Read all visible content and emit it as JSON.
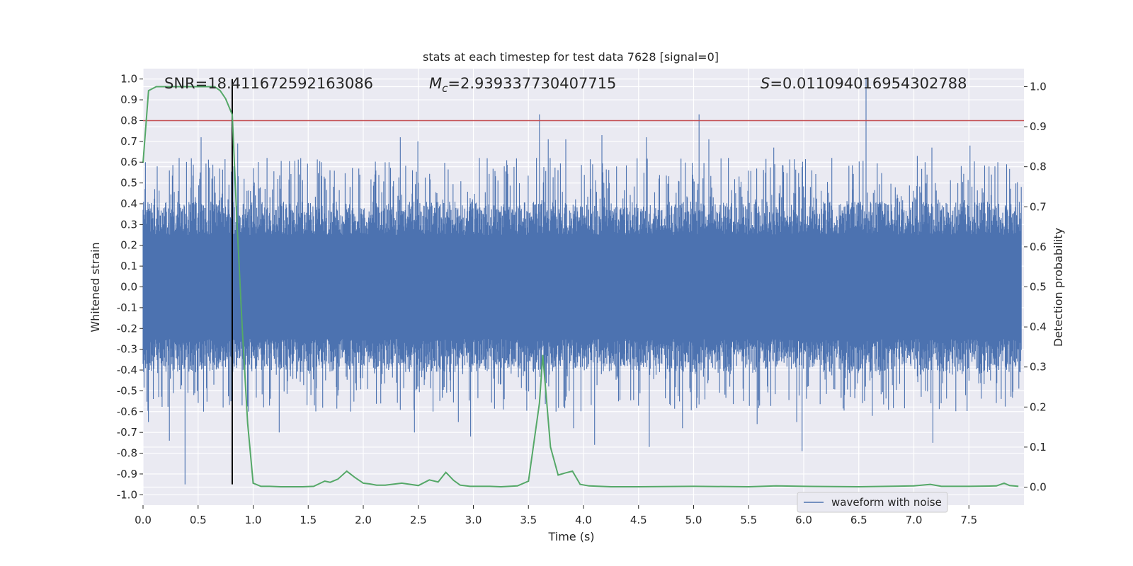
{
  "chart_data": {
    "type": "line",
    "title": "stats at each timestep for test data 7628 [signal=0]",
    "xlabel": "Time (s)",
    "ylabel_left": "Whitened strain",
    "ylabel_right": "Detection probability",
    "xlim": [
      0,
      8.0
    ],
    "ylim_left": [
      -1.05,
      1.05
    ],
    "ylim_right": [
      -0.045,
      1.045
    ],
    "x_ticks": [
      "0.0",
      "0.5",
      "1.0",
      "1.5",
      "2.0",
      "2.5",
      "3.0",
      "3.5",
      "4.0",
      "4.5",
      "5.0",
      "5.5",
      "6.0",
      "6.5",
      "7.0",
      "7.5"
    ],
    "y_ticks_left": [
      "1.0",
      "0.9",
      "0.8",
      "0.7",
      "0.6",
      "0.5",
      "0.4",
      "0.3",
      "0.2",
      "0.1",
      "0.0",
      "-0.1",
      "-0.2",
      "-0.3",
      "-0.4",
      "-0.5",
      "-0.6",
      "-0.7",
      "-0.8",
      "-0.9",
      "-1.0"
    ],
    "y_ticks_right": [
      "1.0",
      "0.9",
      "0.8",
      "0.7",
      "0.6",
      "0.5",
      "0.4",
      "0.3",
      "0.2",
      "0.1",
      "0.0"
    ],
    "grid": true,
    "legend_position": "lower-right",
    "annotations": {
      "snr": "SNR=18.411672592163086",
      "mc_symbol": "M",
      "mc_sub": "c",
      "mc_value": "=2.939337730407715",
      "s_symbol": "S",
      "s_value": "=0.011094016954302788"
    },
    "series": [
      {
        "name": "waveform with noise",
        "axis": "left",
        "color": "#4c72b0",
        "description_values": "noise envelope approx ±0.35, peaks up to 1.0",
        "peaks": [
          [
            0.02,
            0.6
          ],
          [
            0.05,
            -0.65
          ],
          [
            0.13,
            0.58
          ],
          [
            0.24,
            -0.74
          ],
          [
            0.33,
            0.62
          ],
          [
            0.38,
            -0.95
          ],
          [
            0.53,
            0.72
          ],
          [
            0.55,
            -0.6
          ],
          [
            0.73,
            -0.58
          ],
          [
            0.8,
            -0.55
          ],
          [
            0.86,
            0.69
          ],
          [
            0.92,
            0.52
          ],
          [
            0.96,
            -0.6
          ],
          [
            1.13,
            0.62
          ],
          [
            1.24,
            -0.7
          ],
          [
            1.56,
            -0.57
          ],
          [
            1.62,
            0.6
          ],
          [
            1.89,
            -0.6
          ],
          [
            2.12,
            0.56
          ],
          [
            2.34,
            0.72
          ],
          [
            2.47,
            -0.7
          ],
          [
            2.5,
            0.7
          ],
          [
            2.64,
            -0.6
          ],
          [
            2.87,
            -0.65
          ],
          [
            2.98,
            -0.72
          ],
          [
            3.29,
            0.58
          ],
          [
            3.58,
            0.62
          ],
          [
            3.61,
            0.83
          ],
          [
            3.69,
            0.71
          ],
          [
            3.76,
            -0.6
          ],
          [
            3.85,
            0.71
          ],
          [
            3.92,
            -0.68
          ],
          [
            4.11,
            -0.76
          ],
          [
            4.18,
            0.73
          ],
          [
            4.58,
            0.72
          ],
          [
            4.61,
            -0.77
          ],
          [
            4.91,
            -0.68
          ],
          [
            5.06,
            0.83
          ],
          [
            5.15,
            0.71
          ],
          [
            5.33,
            0.62
          ],
          [
            5.59,
            -0.66
          ],
          [
            5.74,
            0.67
          ],
          [
            5.95,
            -0.65
          ],
          [
            6.0,
            -0.79
          ],
          [
            6.27,
            0.62
          ],
          [
            6.58,
            1.0
          ],
          [
            6.64,
            -0.62
          ],
          [
            7.05,
            0.63
          ],
          [
            7.18,
            0.67
          ],
          [
            7.19,
            -0.75
          ],
          [
            7.53,
            0.68
          ],
          [
            7.78,
            0.6
          ],
          [
            7.86,
            0.59
          ]
        ]
      },
      {
        "name": "",
        "axis": "right",
        "color": "#55a868",
        "x": [
          0.0,
          0.05,
          0.12,
          0.2,
          0.3,
          0.4,
          0.5,
          0.6,
          0.65,
          0.7,
          0.75,
          0.81,
          0.85,
          0.9,
          0.95,
          1.0,
          1.07,
          1.15,
          1.25,
          1.35,
          1.45,
          1.55,
          1.65,
          1.7,
          1.77,
          1.85,
          1.92,
          2.0,
          2.06,
          2.12,
          2.2,
          2.35,
          2.5,
          2.6,
          2.68,
          2.75,
          2.82,
          2.88,
          2.97,
          3.05,
          3.15,
          3.25,
          3.4,
          3.5,
          3.6,
          3.63,
          3.7,
          3.77,
          3.83,
          3.9,
          3.97,
          4.05,
          4.15,
          4.25,
          4.5,
          5.0,
          5.5,
          5.75,
          6.0,
          6.5,
          7.0,
          7.15,
          7.25,
          7.5,
          7.75,
          7.82,
          7.87,
          7.95
        ],
        "y": [
          0.81,
          0.99,
          1.0,
          1.0,
          1.0,
          1.0,
          1.0,
          1.0,
          1.0,
          0.99,
          0.97,
          0.93,
          0.68,
          0.4,
          0.16,
          0.01,
          0.002,
          0.002,
          0.001,
          0.001,
          0.001,
          0.002,
          0.015,
          0.012,
          0.02,
          0.04,
          0.025,
          0.01,
          0.008,
          0.005,
          0.005,
          0.01,
          0.004,
          0.018,
          0.013,
          0.037,
          0.017,
          0.005,
          0.002,
          0.002,
          0.002,
          0.001,
          0.003,
          0.015,
          0.21,
          0.33,
          0.1,
          0.03,
          0.035,
          0.04,
          0.007,
          0.003,
          0.002,
          0.001,
          0.001,
          0.002,
          0.001,
          0.003,
          0.002,
          0.001,
          0.003,
          0.007,
          0.002,
          0.002,
          0.003,
          0.01,
          0.004,
          0.002
        ]
      }
    ],
    "threshold_line": {
      "axis": "left",
      "y": 0.8,
      "color": "#c44e52"
    },
    "marker_line": {
      "x": 0.81,
      "y_from": -0.95,
      "y_to": 1.0,
      "color": "#000000"
    }
  },
  "colors": {
    "plot_bg": "#eaeaf2",
    "grid": "#ffffff",
    "waveform": "#4c72b0",
    "probability": "#55a868",
    "threshold": "#c44e52"
  }
}
